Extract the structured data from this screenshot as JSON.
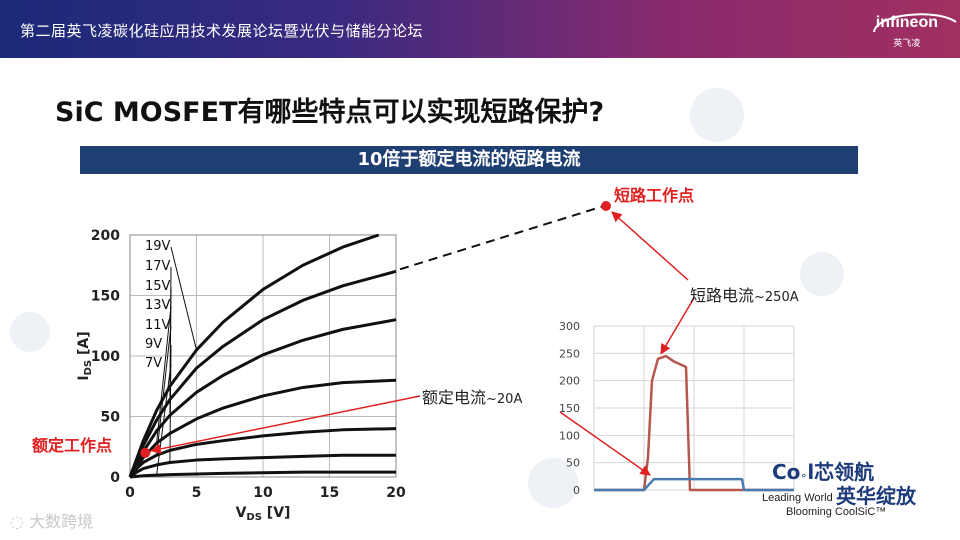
{
  "header": {
    "event_title": "第二届英飞凌碳化硅应用技术发展论坛暨光伏与储能分论坛"
  },
  "logo": {
    "brand": "infineon",
    "brand_cn": "英飞凌"
  },
  "slide": {
    "title": "SiC MOSFET有哪些特点可以实现短路保护?",
    "banner": "10倍于额定电流的短路电流"
  },
  "annotations": {
    "short_circuit_point": "短路工作点",
    "rated_point": "额定工作点",
    "short_circuit_current_label": "短路电流",
    "short_circuit_current_value": "~250A",
    "rated_current_label": "额定电流",
    "rated_current_value": "~20A"
  },
  "branding": {
    "cool_prefix": "Co",
    "cool_suffix": "l芯领航",
    "tag1": "Leading World",
    "cn2": "英华绽放",
    "tag2": "Blooming CoolSiC™"
  },
  "watermark": "大数跨境",
  "chart_data": [
    {
      "type": "line",
      "title": "",
      "xlabel": "VDS [V]",
      "ylabel": "IDS [A]",
      "xlim": [
        0,
        20
      ],
      "ylim": [
        0,
        200
      ],
      "x_ticks": [
        0,
        5,
        10,
        15,
        20
      ],
      "y_ticks": [
        0,
        50,
        100,
        150,
        200
      ],
      "grid": true,
      "series": [
        {
          "name": "19V",
          "x": [
            0,
            0.5,
            1,
            2,
            3,
            5,
            7,
            10,
            13,
            16,
            18.7
          ],
          "y": [
            0,
            15,
            30,
            55,
            75,
            105,
            128,
            155,
            175,
            190,
            200
          ]
        },
        {
          "name": "17V",
          "x": [
            0,
            0.5,
            1,
            2,
            3,
            5,
            7,
            10,
            13,
            16,
            20
          ],
          "y": [
            0,
            13,
            26,
            47,
            64,
            90,
            108,
            130,
            146,
            158,
            170
          ]
        },
        {
          "name": "15V",
          "x": [
            0,
            0.5,
            1,
            2,
            3,
            5,
            7,
            10,
            13,
            16,
            20
          ],
          "y": [
            0,
            11,
            21,
            38,
            51,
            70,
            84,
            101,
            113,
            122,
            130
          ]
        },
        {
          "name": "13V",
          "x": [
            0,
            0.5,
            1,
            2,
            3,
            5,
            7,
            10,
            13,
            16,
            20
          ],
          "y": [
            0,
            9,
            16,
            28,
            36,
            48,
            57,
            67,
            74,
            78,
            80
          ]
        },
        {
          "name": "11V",
          "x": [
            0,
            0.5,
            1,
            2,
            3,
            5,
            7,
            10,
            13,
            16,
            20
          ],
          "y": [
            0,
            7,
            12,
            18,
            22,
            27,
            30,
            34,
            37,
            39,
            40
          ]
        },
        {
          "name": "9V",
          "x": [
            0,
            0.5,
            1,
            2,
            3,
            5,
            7,
            10,
            13,
            16,
            20
          ],
          "y": [
            0,
            4,
            7,
            10,
            12,
            14,
            15,
            16,
            17,
            18,
            18
          ]
        },
        {
          "name": "7V",
          "x": [
            0,
            1,
            2,
            3,
            5,
            7,
            10,
            13,
            16,
            20
          ],
          "y": [
            0,
            1,
            1.5,
            2,
            2.5,
            3,
            3.5,
            4,
            4,
            4
          ]
        }
      ],
      "markers": [
        {
          "label": "额定工作点",
          "x": 1,
          "y": 20
        }
      ]
    },
    {
      "type": "line",
      "title": "",
      "xlabel": "",
      "ylabel": "",
      "ylim": [
        0,
        300
      ],
      "y_ticks": [
        0,
        50,
        100,
        150,
        200,
        250,
        300
      ],
      "x_ticks": [],
      "grid": true,
      "series": [
        {
          "name": "short-circuit",
          "x": [
            0,
            20,
            25,
            27,
            29,
            32,
            36,
            40,
            46,
            48,
            50,
            100
          ],
          "y": [
            0,
            0,
            0,
            60,
            200,
            240,
            245,
            235,
            225,
            0,
            0,
            0
          ]
        },
        {
          "name": "rated",
          "x": [
            0,
            20,
            25,
            30,
            40,
            50,
            60,
            70,
            74,
            75,
            100
          ],
          "y": [
            0,
            0,
            0,
            20,
            20,
            20,
            20,
            20,
            20,
            0,
            0
          ]
        }
      ]
    }
  ],
  "colors": {
    "accent_red": "#e02020",
    "banner_bg": "#1f3f73",
    "sc_wave": "#b5564f",
    "rated_wave": "#4a7bb0",
    "brand_blue": "#1d3b7a"
  }
}
